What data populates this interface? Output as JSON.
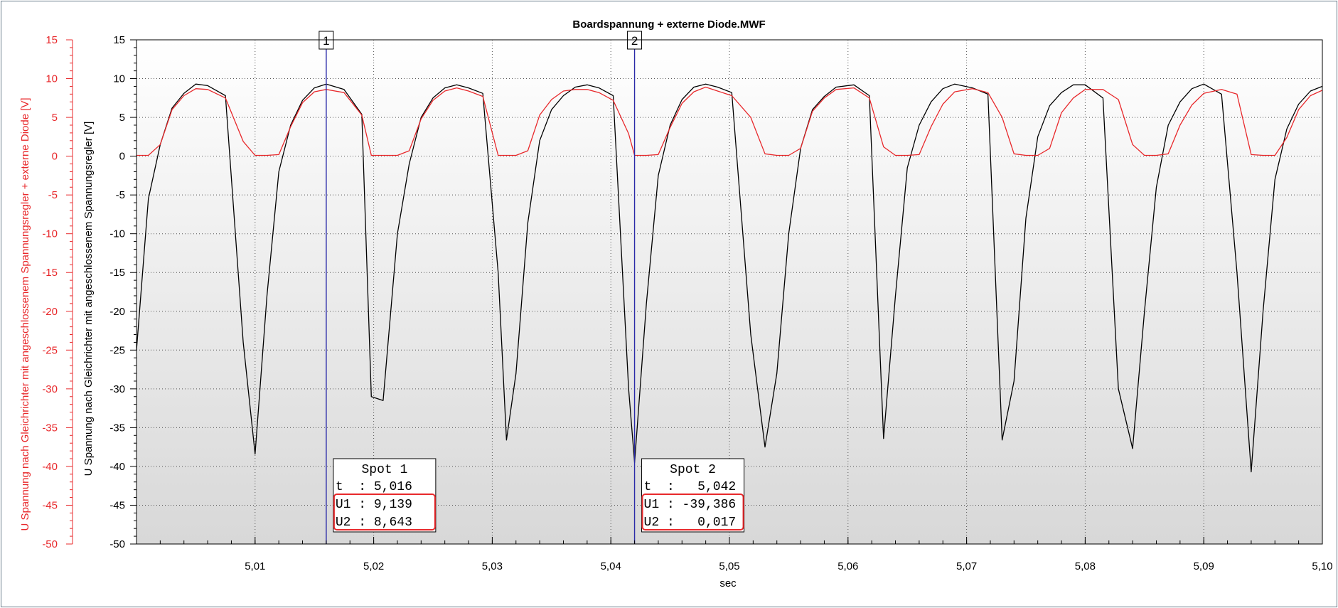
{
  "chart_data": {
    "type": "line",
    "title": "Boardspannung + externe Diode.MWF",
    "xlabel": "sec",
    "ylabel_left_outer": "U Spannung nach Gleichrichter mit angeschlossenem Spannungsregler + externe Diode [V]",
    "ylabel_left_inner": "U Spannung nach Gleichrichter mit angeschlossenem Spannungsregler [V]",
    "xlim": [
      5.0,
      5.1
    ],
    "ylim": [
      -50,
      15
    ],
    "grid": true,
    "x_ticks": [
      {
        "value": 5.01,
        "label": "5,01"
      },
      {
        "value": 5.02,
        "label": "5,02"
      },
      {
        "value": 5.03,
        "label": "5,03"
      },
      {
        "value": 5.04,
        "label": "5,04"
      },
      {
        "value": 5.05,
        "label": "5,05"
      },
      {
        "value": 5.06,
        "label": "5,06"
      },
      {
        "value": 5.07,
        "label": "5,07"
      },
      {
        "value": 5.08,
        "label": "5,08"
      },
      {
        "value": 5.09,
        "label": "5,09"
      },
      {
        "value": 5.1,
        "label": "5,10"
      }
    ],
    "y_ticks": [
      15,
      10,
      5,
      0,
      -5,
      -10,
      -15,
      -20,
      -25,
      -30,
      -35,
      -40,
      -45,
      -50
    ],
    "series": [
      {
        "key": "U1",
        "color": "#000000",
        "x": [
          5.0,
          5.001,
          5.002,
          5.003,
          5.004,
          5.005,
          5.006,
          5.0075,
          5.009,
          5.01,
          5.011,
          5.012,
          5.013,
          5.014,
          5.015,
          5.016,
          5.0175,
          5.019,
          5.0198,
          5.0208,
          5.022,
          5.023,
          5.024,
          5.025,
          5.026,
          5.027,
          5.028,
          5.0292,
          5.0305,
          5.0312,
          5.032,
          5.033,
          5.034,
          5.035,
          5.036,
          5.037,
          5.038,
          5.039,
          5.0402,
          5.0415,
          5.042,
          5.043,
          5.044,
          5.045,
          5.046,
          5.047,
          5.048,
          5.049,
          5.0502,
          5.0518,
          5.053,
          5.054,
          5.055,
          5.056,
          5.057,
          5.058,
          5.059,
          5.0605,
          5.0618,
          5.063,
          5.064,
          5.065,
          5.066,
          5.067,
          5.068,
          5.069,
          5.0705,
          5.0718,
          5.073,
          5.074,
          5.075,
          5.076,
          5.077,
          5.078,
          5.079,
          5.08,
          5.0815,
          5.0828,
          5.084,
          5.085,
          5.086,
          5.087,
          5.088,
          5.089,
          5.09,
          5.0915,
          5.0928,
          5.094,
          5.095,
          5.096,
          5.097,
          5.098,
          5.099,
          5.1
        ],
        "y": [
          -25,
          -5.5,
          1.5,
          6.2,
          8.1,
          9.3,
          9.1,
          7.8,
          -24,
          -38.4,
          -18,
          -2,
          4,
          7.2,
          8.8,
          9.3,
          8.6,
          5.4,
          -31,
          -31.5,
          -10,
          -1,
          5,
          7.5,
          8.8,
          9.2,
          8.8,
          8.1,
          -15,
          -36.6,
          -28,
          -8.6,
          2,
          6,
          7.8,
          8.9,
          9.2,
          8.8,
          7.8,
          -30,
          -39.5,
          -19,
          -2.5,
          4,
          7.3,
          8.9,
          9.3,
          8.9,
          8.2,
          -23,
          -37.5,
          -28,
          -10,
          1,
          6,
          7.7,
          8.9,
          9.2,
          7.8,
          -36.4,
          -18,
          -1.5,
          4,
          7,
          8.7,
          9.3,
          8.8,
          8.0,
          -36.6,
          -29,
          -8,
          2.5,
          6.5,
          8.2,
          9.2,
          9.2,
          7.5,
          -30,
          -37.7,
          -20,
          -4,
          4,
          7,
          8.7,
          9.3,
          8.0,
          -15,
          -40.7,
          -20,
          -3,
          3.5,
          6.7,
          8.4,
          9.0
        ]
      },
      {
        "key": "U2",
        "color": "#e8282b",
        "x": [
          5.0,
          5.001,
          5.002,
          5.003,
          5.004,
          5.005,
          5.006,
          5.0075,
          5.009,
          5.01,
          5.011,
          5.012,
          5.013,
          5.014,
          5.015,
          5.016,
          5.0175,
          5.019,
          5.0198,
          5.0205,
          5.022,
          5.023,
          5.024,
          5.025,
          5.026,
          5.027,
          5.028,
          5.0292,
          5.0305,
          5.0312,
          5.032,
          5.033,
          5.034,
          5.035,
          5.036,
          5.037,
          5.038,
          5.039,
          5.0402,
          5.0415,
          5.042,
          5.043,
          5.044,
          5.045,
          5.046,
          5.047,
          5.048,
          5.049,
          5.0502,
          5.0518,
          5.053,
          5.054,
          5.055,
          5.056,
          5.057,
          5.058,
          5.059,
          5.0605,
          5.0618,
          5.063,
          5.064,
          5.065,
          5.066,
          5.067,
          5.068,
          5.069,
          5.0705,
          5.0718,
          5.073,
          5.074,
          5.075,
          5.076,
          5.077,
          5.078,
          5.079,
          5.08,
          5.0815,
          5.0828,
          5.084,
          5.085,
          5.086,
          5.087,
          5.088,
          5.089,
          5.09,
          5.0915,
          5.0928,
          5.094,
          5.095,
          5.096,
          5.097,
          5.098,
          5.099,
          5.1
        ],
        "y": [
          0.1,
          0.1,
          1.5,
          6.0,
          7.8,
          8.7,
          8.6,
          7.5,
          1.9,
          0.1,
          0.1,
          0.2,
          3.8,
          6.9,
          8.3,
          8.6,
          8.2,
          5.3,
          0.1,
          0.1,
          0.1,
          0.7,
          4.8,
          7.2,
          8.4,
          8.8,
          8.4,
          7.7,
          0.1,
          0.1,
          0.1,
          0.7,
          5.3,
          7.3,
          8.4,
          8.6,
          8.6,
          8.2,
          7.2,
          2.9,
          0.1,
          0.1,
          0.2,
          3.7,
          6.8,
          8.3,
          8.9,
          8.4,
          7.8,
          5.0,
          0.3,
          0.1,
          0.1,
          1.0,
          5.8,
          7.5,
          8.6,
          8.8,
          7.5,
          1.2,
          0.1,
          0.1,
          0.2,
          3.8,
          6.7,
          8.3,
          8.7,
          8.2,
          5.0,
          0.3,
          0.1,
          0.1,
          1.0,
          5.6,
          7.5,
          8.6,
          8.6,
          7.3,
          1.5,
          0.1,
          0.1,
          0.3,
          4.0,
          6.6,
          8.1,
          8.6,
          8.0,
          0.2,
          0.1,
          0.1,
          2.4,
          6.0,
          7.8,
          8.5
        ]
      }
    ],
    "cursors": [
      {
        "number": "1",
        "x": 5.016,
        "box_title": "Spot 1",
        "rows": [
          "t  : 5,016",
          "U1 : 9,139",
          "U2 : 8,643"
        ]
      },
      {
        "number": "2",
        "x": 5.042,
        "box_title": "Spot 2",
        "rows": [
          "t  :   5,042",
          "U1 : -39,386",
          "U2 :   0,017"
        ]
      }
    ],
    "colors": {
      "u1_line": "#000000",
      "u2_line": "#e8282b",
      "cursor_line": "#2a2aa8",
      "highlight_box": "#e8282b",
      "outer_axis": "#e8282b",
      "inner_axis": "#000000",
      "plot_gradient_top": "#ffffff",
      "plot_gradient_bottom": "#d8d8d8"
    }
  }
}
